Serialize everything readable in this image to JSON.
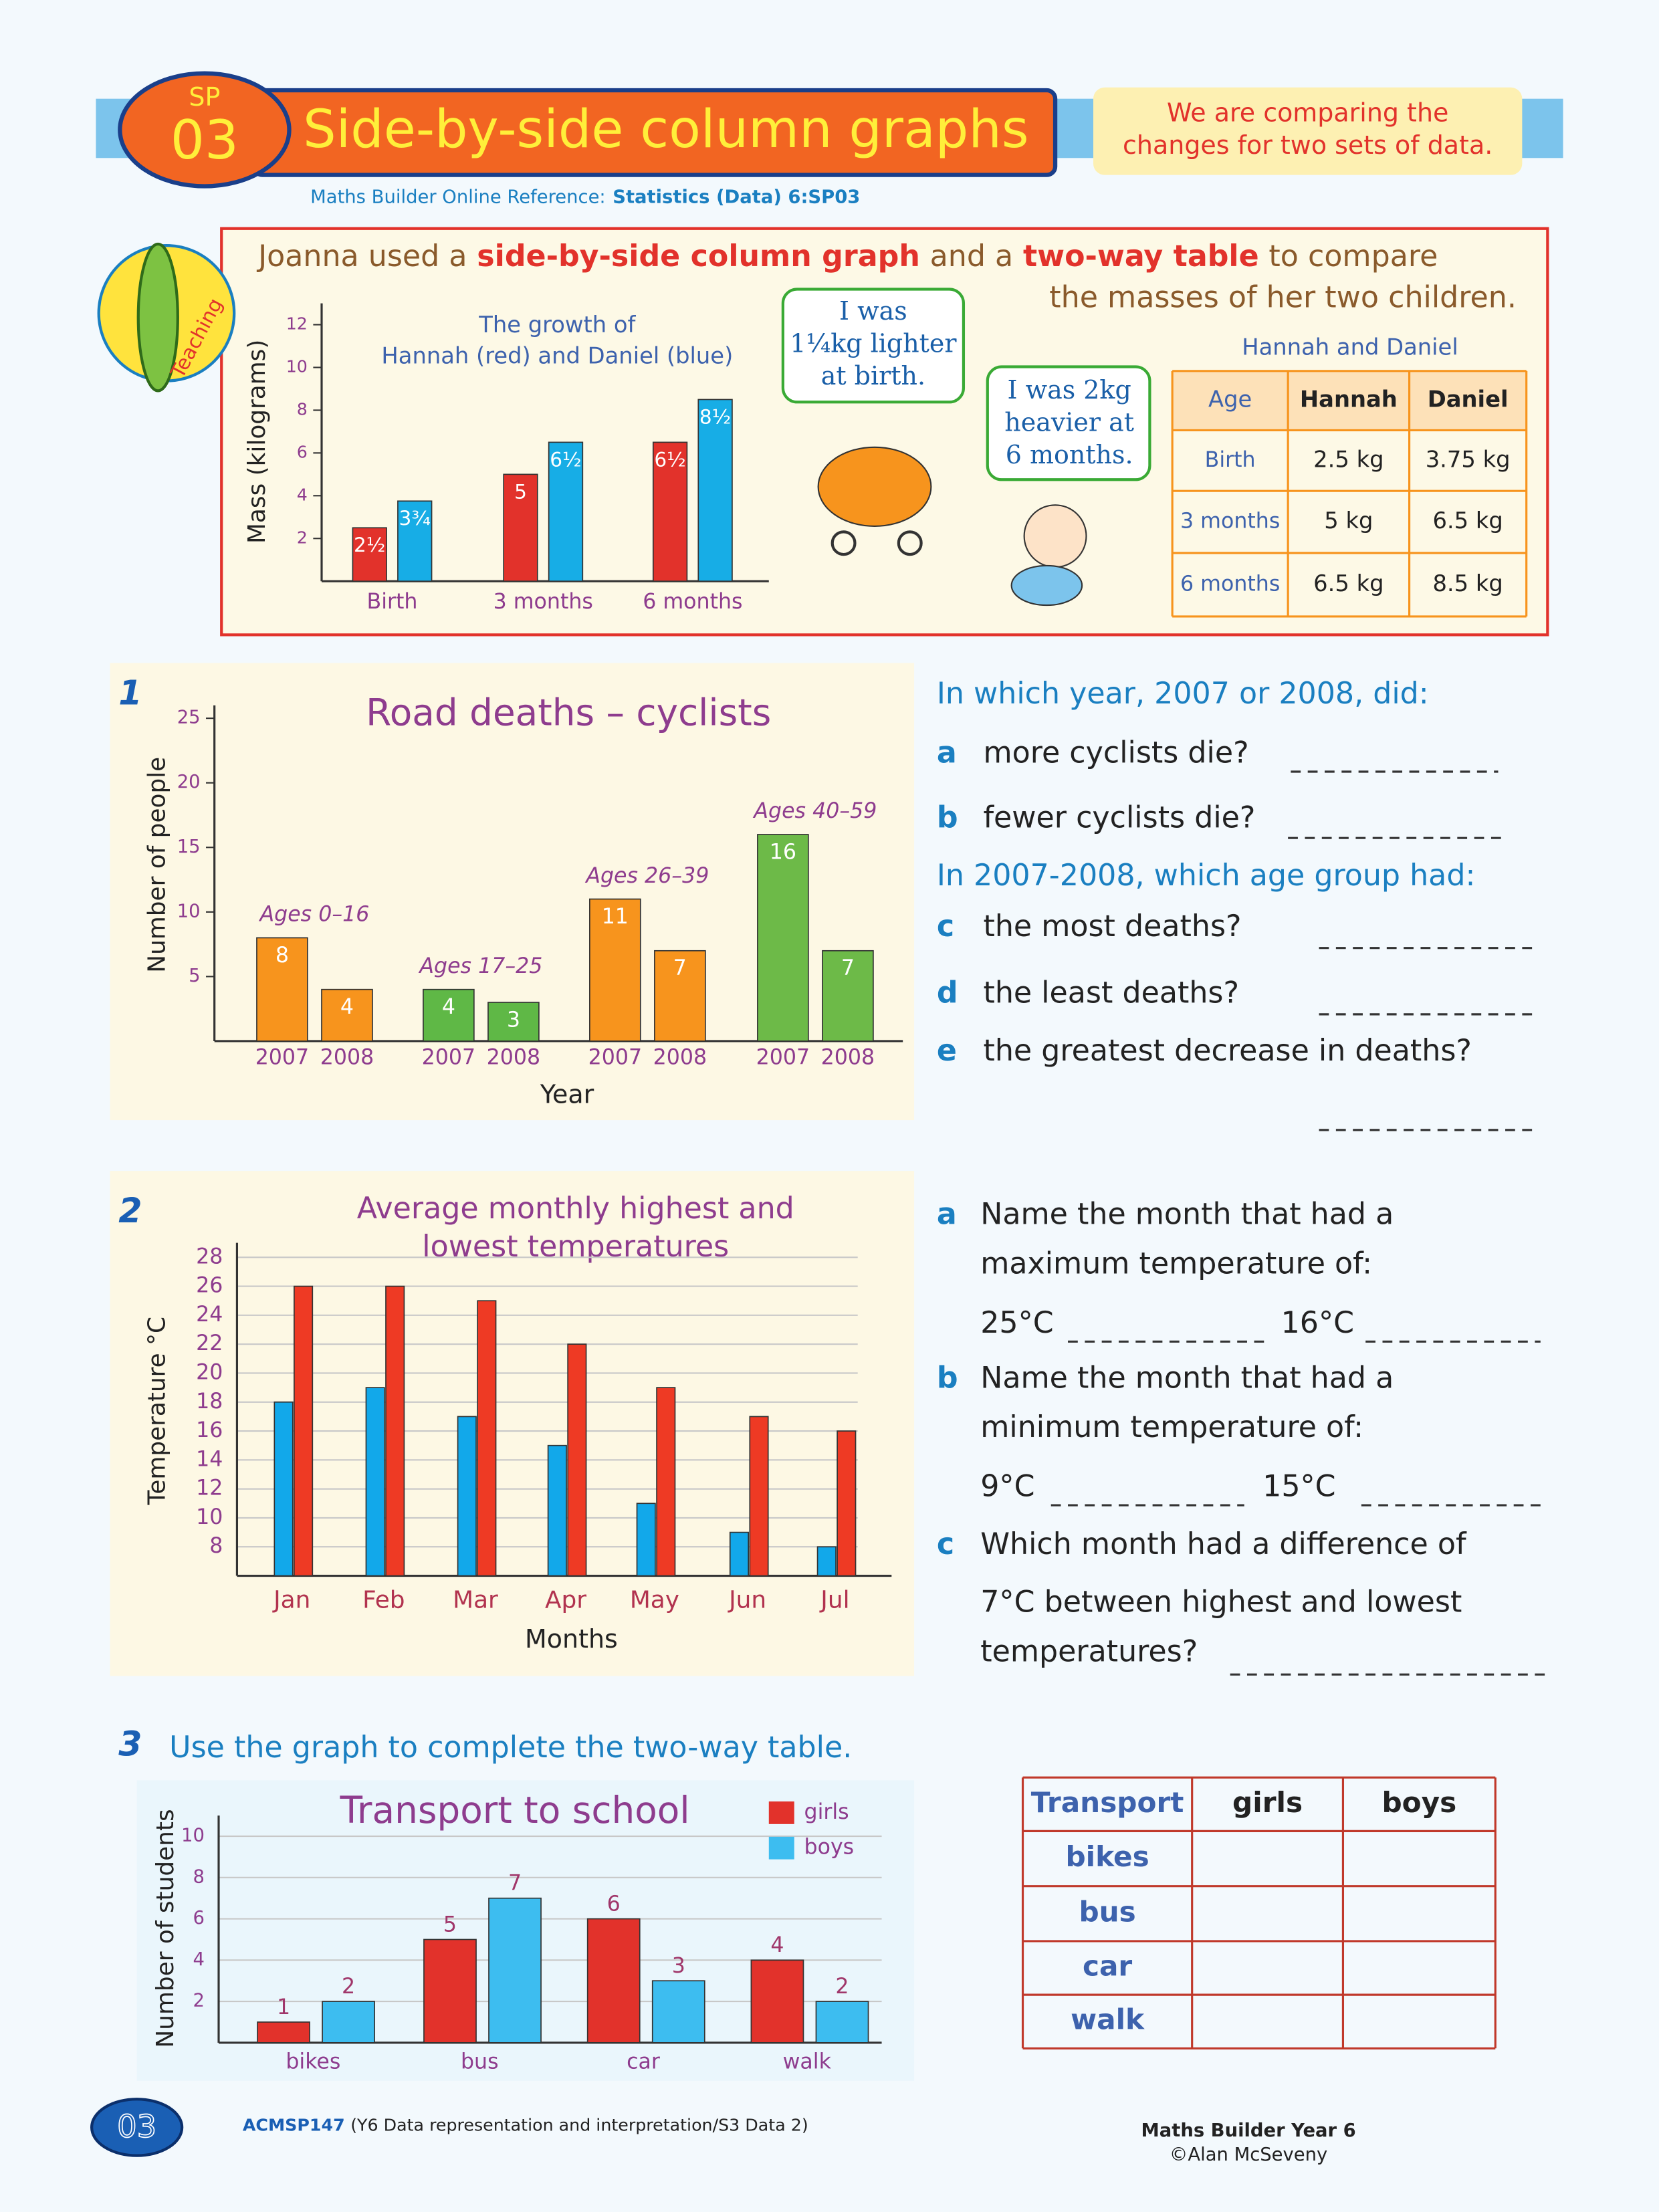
{
  "header": {
    "badge_top": "SP",
    "badge_number": "03",
    "title": "Side-by-side column graphs",
    "note": [
      "We are comparing the",
      "changes for two sets of data."
    ],
    "reference_label": "Maths Builder Online Reference:",
    "reference": "Statistics (Data) 6:SP03"
  },
  "teaching": {
    "label": "Teaching",
    "intro": [
      "Joanna used a",
      "side-by-side column graph",
      "and a",
      "two-way table",
      "to compare"
    ],
    "intro_end": "the masses of her two children.",
    "bubbles": [
      [
        "I was",
        "1¼kg lighter",
        "at birth."
      ],
      [
        "I was 2kg",
        "heavier at",
        "6 months."
      ]
    ],
    "table": {
      "caption": "Hannah and Daniel",
      "header": [
        "Age",
        "Hannah",
        "Daniel"
      ],
      "rows": [
        [
          "Birth",
          "2.5 kg",
          "3.75 kg"
        ],
        [
          "3 months",
          "5 kg",
          "6.5 kg"
        ],
        [
          "6 months",
          "6.5 kg",
          "8.5 kg"
        ]
      ]
    }
  },
  "chart_data": [
    {
      "type": "bar",
      "title": [
        "The growth of",
        "Hannah (red) and Daniel (blue)"
      ],
      "ylabel": "Mass (kilograms)",
      "categories": [
        "Birth",
        "3 months",
        "6 months"
      ],
      "series": [
        {
          "color": "#e2322b",
          "values": [
            2.5,
            5,
            6.5
          ],
          "value_labels": [
            "2½",
            "5",
            "6½"
          ]
        },
        {
          "color": "#17ade6",
          "values": [
            3.75,
            6.5,
            8.5
          ],
          "value_labels": [
            "3¾",
            "6½",
            "8½"
          ]
        }
      ],
      "ylim": [
        0,
        13
      ],
      "yticks": [
        2,
        4,
        6,
        8,
        10,
        12
      ],
      "grid": false
    },
    {
      "type": "bar",
      "title": "Road deaths – cyclists",
      "ylabel": "Number of people",
      "xlabel": "Year",
      "groups": [
        {
          "name": "Ages 0–16",
          "color": "#f7941d",
          "categories": [
            "2007",
            "2008"
          ],
          "values": [
            8,
            4
          ]
        },
        {
          "name": "Ages 17–25",
          "color": "#5fb846",
          "categories": [
            "2007",
            "2008"
          ],
          "values": [
            4,
            3
          ]
        },
        {
          "name": "Ages 26–39",
          "color": "#f7941d",
          "categories": [
            "2007",
            "2008"
          ],
          "values": [
            11,
            7
          ]
        },
        {
          "name": "Ages 40–59",
          "color": "#6dba48",
          "categories": [
            "2007",
            "2008"
          ],
          "values": [
            16,
            7
          ]
        }
      ],
      "ylim": [
        0,
        26
      ],
      "yticks": [
        5,
        10,
        15,
        20,
        25
      ],
      "grid": false
    },
    {
      "type": "bar",
      "title": [
        "Average monthly highest and",
        "lowest temperatures"
      ],
      "ylabel": "Temperature °C",
      "xlabel": "Months",
      "categories": [
        "Jan",
        "Feb",
        "Mar",
        "Apr",
        "May",
        "Jun",
        "Jul"
      ],
      "series": [
        {
          "color": "#12a8ea",
          "values": [
            18,
            19,
            17,
            15,
            11,
            9,
            8
          ]
        },
        {
          "color": "#ee3a24",
          "values": [
            26,
            26,
            25,
            22,
            19,
            17,
            16
          ]
        }
      ],
      "ylim": [
        6,
        29
      ],
      "yticks": [
        8,
        10,
        12,
        14,
        16,
        18,
        20,
        22,
        24,
        26,
        28
      ],
      "grid": true
    },
    {
      "type": "bar",
      "title": "Transport to school",
      "ylabel": "Number of students",
      "categories": [
        "bikes",
        "bus",
        "car",
        "walk"
      ],
      "series": [
        {
          "name": "girls",
          "color": "#e2322b",
          "values": [
            1,
            5,
            6,
            4
          ]
        },
        {
          "name": "boys",
          "color": "#3dbdf0",
          "values": [
            2,
            7,
            3,
            2
          ]
        }
      ],
      "ylim": [
        0,
        11
      ],
      "yticks": [
        2,
        4,
        6,
        8,
        10
      ],
      "grid": true,
      "legend": "top-right"
    }
  ],
  "question1": {
    "number": "1",
    "parts": [
      {
        "intro": "In which year, 2007 or 2008, did:",
        "items": [
          {
            "letter": "a",
            "text": "more cyclists die?"
          },
          {
            "letter": "b",
            "text": "fewer cyclists die?"
          }
        ]
      },
      {
        "intro": "In 2007-2008, which age group had:",
        "items": [
          {
            "letter": "c",
            "text": "the most deaths?"
          },
          {
            "letter": "d",
            "text": "the least deaths?"
          },
          {
            "letter": "e",
            "text": "the greatest decrease in deaths?"
          }
        ]
      }
    ]
  },
  "question2": {
    "number": "2",
    "items": [
      {
        "letter": "a",
        "lines": [
          "Name the month that had a",
          "maximum temperature of:"
        ],
        "blanks": [
          "25°C",
          "16°C"
        ]
      },
      {
        "letter": "b",
        "lines": [
          "Name the month that had a",
          "minimum temperature of:"
        ],
        "blanks": [
          "9°C",
          "15°C"
        ]
      },
      {
        "letter": "c",
        "lines": [
          "Which month had a difference of",
          "7°C between highest and lowest",
          "temperatures?"
        ]
      }
    ]
  },
  "question3": {
    "number": "3",
    "text": "Use the graph to complete the two-way table.",
    "table": {
      "header": [
        "Transport",
        "girls",
        "boys"
      ],
      "rows": [
        "bikes",
        "bus",
        "car",
        "walk"
      ]
    }
  },
  "footer": {
    "page": "03",
    "code": "ACMSP147",
    "code_note": "(Y6 Data representation and interpretation/S3 Data 2)",
    "book": "Maths Builder Year 6",
    "copyright": "©Alan McSeveny"
  }
}
